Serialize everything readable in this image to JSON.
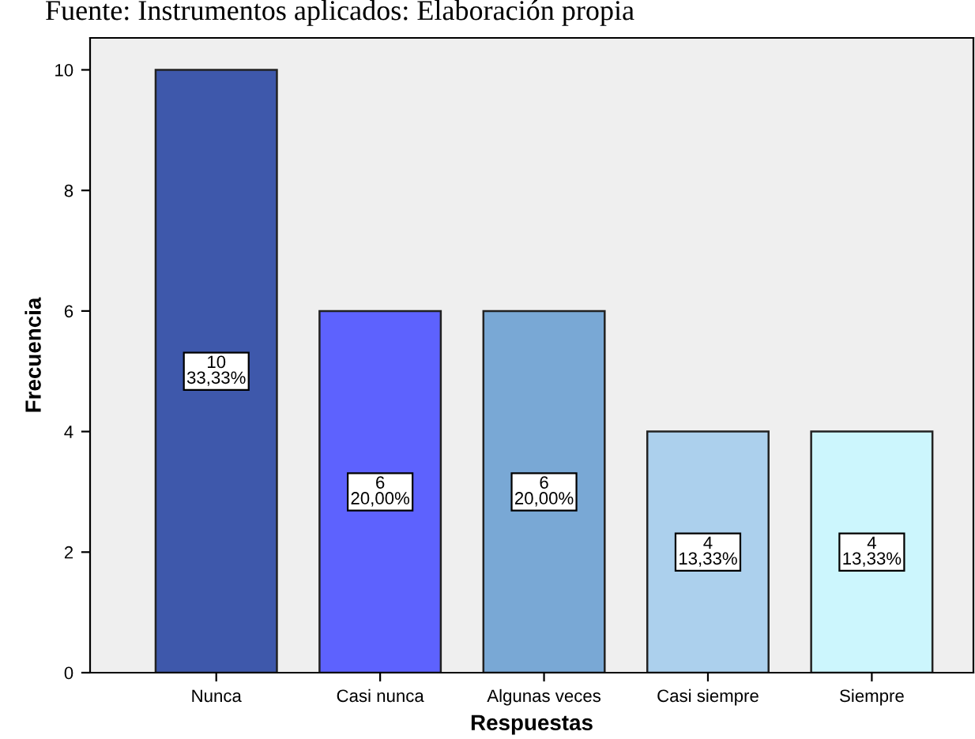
{
  "chart_data": {
    "type": "bar",
    "title": "Fuente: Instrumentos aplicados: Elaboración propia",
    "xlabel": "Respuestas",
    "ylabel": "Frecuencia",
    "categories": [
      "Nunca",
      "Casi nunca",
      "Algunas veces",
      "Casi siempre",
      "Siempre"
    ],
    "values": [
      10,
      6,
      6,
      4,
      4
    ],
    "colors": [
      "#3e58ab",
      "#5d62fe",
      "#79a8d5",
      "#acd0ed",
      "#ccf6fd"
    ],
    "value_labels": [
      "10\n33,33%",
      "6\n20,00%",
      "6\n20,00%",
      "4\n13,33%",
      "4\n13,33%"
    ],
    "ylim": [
      0,
      10.53
    ],
    "yticks": [
      0,
      2,
      4,
      6,
      8,
      10
    ],
    "grid": false
  }
}
